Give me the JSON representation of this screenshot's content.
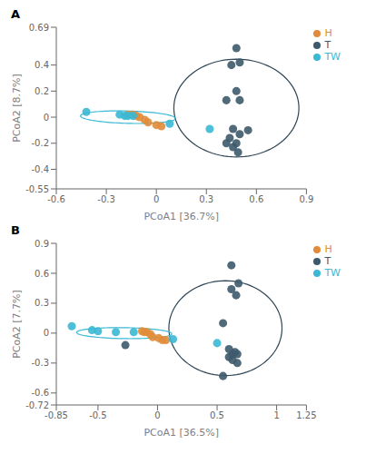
{
  "chart_data": [
    {
      "type": "scatter",
      "title": "A",
      "xlabel": "PCoA1 [36.7%]",
      "ylabel": "PCoA2 [8.7%]",
      "xlim": [
        -0.6,
        0.9
      ],
      "ylim": [
        -0.55,
        0.69
      ],
      "xticks": [
        -0.6,
        -0.3,
        0,
        0.3,
        0.6,
        0.9
      ],
      "yticks": [
        -0.55,
        -0.4,
        -0.2,
        0,
        0.2,
        0.4,
        0.69
      ],
      "legend": "right",
      "series": [
        {
          "name": "T",
          "color": "#3d5a6c",
          "values": [
            [
              0.48,
              0.53
            ],
            [
              0.5,
              0.42
            ],
            [
              0.45,
              0.4
            ],
            [
              0.48,
              0.2
            ],
            [
              0.42,
              0.13
            ],
            [
              0.5,
              0.13
            ],
            [
              0.46,
              -0.09
            ],
            [
              0.5,
              -0.13
            ],
            [
              0.44,
              -0.16
            ],
            [
              0.48,
              -0.2
            ],
            [
              0.42,
              -0.2
            ],
            [
              0.46,
              -0.23
            ],
            [
              0.49,
              -0.27
            ],
            [
              0.55,
              -0.1
            ]
          ]
        },
        {
          "name": "H",
          "color": "#e08c3a",
          "values": [
            [
              -0.07,
              -0.02
            ],
            [
              -0.1,
              0.0
            ],
            [
              -0.12,
              0.01
            ],
            [
              -0.14,
              0.02
            ],
            [
              -0.17,
              0.02
            ],
            [
              -0.05,
              -0.04
            ],
            [
              0.0,
              -0.06
            ],
            [
              0.03,
              -0.07
            ]
          ]
        },
        {
          "name": "TW",
          "color": "#3ab8d4",
          "values": [
            [
              -0.42,
              0.04
            ],
            [
              -0.22,
              0.02
            ],
            [
              -0.19,
              0.01
            ],
            [
              -0.17,
              0.01
            ],
            [
              -0.14,
              0.01
            ],
            [
              0.08,
              -0.05
            ],
            [
              0.32,
              -0.09
            ]
          ]
        }
      ],
      "ellipses": [
        {
          "center": [
            0.48,
            0.07
          ],
          "width": 0.75,
          "height": 0.75,
          "color": "#2d4555"
        },
        {
          "center": [
            -0.17,
            0.0
          ],
          "width": 0.57,
          "height": 0.095,
          "angle": -2.0,
          "color": "#3ab8d4"
        }
      ]
    },
    {
      "type": "scatter",
      "title": "B",
      "xlabel": "PCoA1 [36.5%]",
      "ylabel": "PCoA2 [7.7%]",
      "xlim": [
        -0.85,
        1.25
      ],
      "ylim": [
        -0.72,
        0.9
      ],
      "xticks": [
        -0.85,
        -0.5,
        0,
        0.5,
        1,
        1.25
      ],
      "yticks": [
        -0.72,
        -0.6,
        -0.3,
        0,
        0.3,
        0.6,
        0.9
      ],
      "legend": "right",
      "series": [
        {
          "name": "T",
          "color": "#3d5a6c",
          "values": [
            [
              0.62,
              0.68
            ],
            [
              0.68,
              0.5
            ],
            [
              0.62,
              0.44
            ],
            [
              0.66,
              0.38
            ],
            [
              0.55,
              0.1
            ],
            [
              0.6,
              -0.16
            ],
            [
              0.65,
              -0.19
            ],
            [
              0.63,
              -0.21
            ],
            [
              0.67,
              -0.21
            ],
            [
              0.6,
              -0.24
            ],
            [
              0.63,
              -0.27
            ],
            [
              0.67,
              -0.3
            ],
            [
              0.55,
              -0.43
            ],
            [
              -0.27,
              -0.12
            ]
          ]
        },
        {
          "name": "H",
          "color": "#e08c3a",
          "values": [
            [
              -0.06,
              -0.01
            ],
            [
              -0.09,
              0.01
            ],
            [
              -0.11,
              0.01
            ],
            [
              -0.13,
              0.02
            ],
            [
              -0.04,
              -0.04
            ],
            [
              0.01,
              -0.05
            ],
            [
              0.04,
              -0.07
            ],
            [
              0.07,
              -0.07
            ]
          ]
        },
        {
          "name": "TW",
          "color": "#3ab8d4",
          "values": [
            [
              -0.72,
              0.07
            ],
            [
              -0.55,
              0.03
            ],
            [
              -0.5,
              0.02
            ],
            [
              -0.35,
              0.01
            ],
            [
              -0.2,
              0.01
            ],
            [
              0.13,
              -0.06
            ],
            [
              0.5,
              -0.1
            ]
          ]
        }
      ],
      "ellipses": [
        {
          "center": [
            0.57,
            0.05
          ],
          "width": 0.95,
          "height": 0.95,
          "color": "#2d4555"
        },
        {
          "center": [
            -0.28,
            0.0
          ],
          "width": 0.8,
          "height": 0.11,
          "angle": -1.0,
          "color": "#3ab8d4"
        }
      ]
    }
  ]
}
